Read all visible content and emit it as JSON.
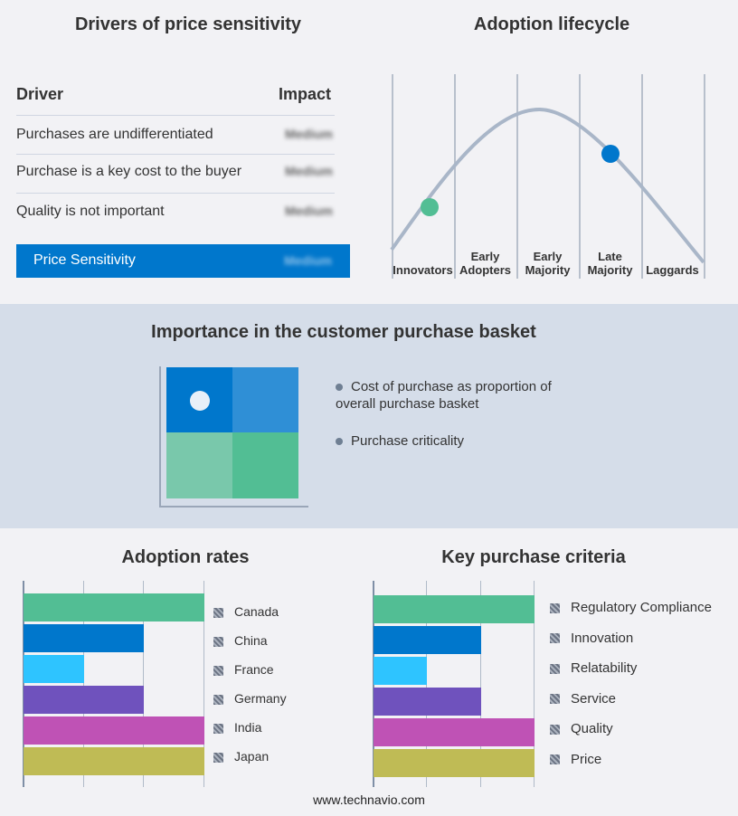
{
  "drivers": {
    "title": "Drivers of price sensitivity",
    "header_driver": "Driver",
    "header_impact": "Impact",
    "rows": [
      {
        "driver": "Purchases are undifferentiated",
        "impact": "Medium"
      },
      {
        "driver": "Purchase is a key cost to the buyer",
        "impact": "Medium"
      },
      {
        "driver": "Quality is not important",
        "impact": "Medium"
      }
    ],
    "summary": {
      "label": "Price Sensitivity",
      "impact": "Medium",
      "color": "#0077cc"
    }
  },
  "lifecycle": {
    "title": "Adoption lifecycle",
    "stages": [
      "Innovators",
      "Early Adopters",
      "Early Majority",
      "Late Majority",
      "Laggards"
    ],
    "markers": [
      {
        "stage": "Innovators",
        "color": "#52be94"
      },
      {
        "stage": "Late Majority",
        "color": "#0077cc"
      }
    ]
  },
  "basket": {
    "title": "Importance in the customer purchase basket",
    "legend": [
      "Cost of purchase as proportion of overall purchase basket",
      "Purchase criticality"
    ],
    "quadrant_colors": [
      "#0077cc",
      "#2f8fd6",
      "#79c8ab",
      "#52be94"
    ]
  },
  "chart_data": [
    {
      "type": "bar",
      "title": "Adoption rates",
      "categories": [
        "Canada",
        "China",
        "France",
        "Germany",
        "India",
        "Japan"
      ],
      "values": [
        3,
        2,
        1,
        2,
        3,
        3
      ],
      "colors": [
        "#52be94",
        "#0077cc",
        "#2ec4ff",
        "#6f52bd",
        "#bf52b5",
        "#bfbb55"
      ],
      "xlim": [
        0,
        3
      ],
      "grid": true,
      "legend": "right"
    },
    {
      "type": "bar",
      "title": "Key purchase criteria",
      "categories": [
        "Regulatory Compliance",
        "Innovation",
        "Relatability",
        "Service",
        "Quality",
        "Price"
      ],
      "values": [
        3,
        2,
        1,
        2,
        3,
        3
      ],
      "colors": [
        "#52be94",
        "#0077cc",
        "#2ec4ff",
        "#6f52bd",
        "#bf52b5",
        "#bfbb55"
      ],
      "xlim": [
        0,
        3
      ],
      "grid": true,
      "legend": "right"
    }
  ],
  "footer": "www.technavio.com"
}
